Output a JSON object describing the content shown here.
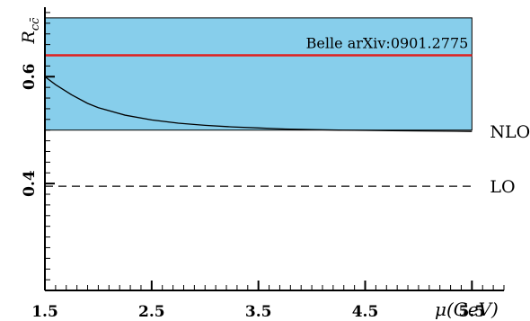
{
  "chart_data": {
    "type": "line",
    "title": "",
    "xlabel": "μ(GeV)",
    "ylabel": "R_cc̄",
    "xlim": [
      1.5,
      5.8
    ],
    "ylim": [
      0.2,
      0.73
    ],
    "x_ticks": [
      1.5,
      2.5,
      3.5,
      4.5,
      5.5
    ],
    "x_tick_labels": [
      "1.5",
      "2.5",
      "3.5",
      "4.5",
      "5.5"
    ],
    "y_ticks": [
      0.4,
      0.6
    ],
    "y_tick_labels": [
      "0.4",
      "0.6"
    ],
    "grid": false,
    "band": {
      "x_range": [
        1.5,
        5.5
      ],
      "y_range": [
        0.5,
        0.71
      ],
      "color": "#87ceeb"
    },
    "reference_line": {
      "label": "Belle arXiv:0901.2775",
      "y": 0.64,
      "x_range": [
        1.5,
        5.5
      ],
      "color": "#e02020"
    },
    "series": [
      {
        "name": "NLO",
        "style": "solid",
        "color": "#000000",
        "x": [
          1.5,
          1.6,
          1.75,
          1.9,
          2.0,
          2.25,
          2.5,
          2.75,
          3.0,
          3.25,
          3.5,
          3.75,
          4.0,
          4.25,
          4.5,
          4.75,
          5.0,
          5.25,
          5.5
        ],
        "y": [
          0.6,
          0.585,
          0.566,
          0.55,
          0.542,
          0.528,
          0.519,
          0.513,
          0.509,
          0.506,
          0.504,
          0.502,
          0.501,
          0.5,
          0.4995,
          0.499,
          0.4985,
          0.498,
          0.4975
        ]
      },
      {
        "name": "LO",
        "style": "dashed",
        "color": "#000000",
        "x": [
          1.5,
          5.5
        ],
        "y": [
          0.395,
          0.395
        ]
      }
    ]
  }
}
